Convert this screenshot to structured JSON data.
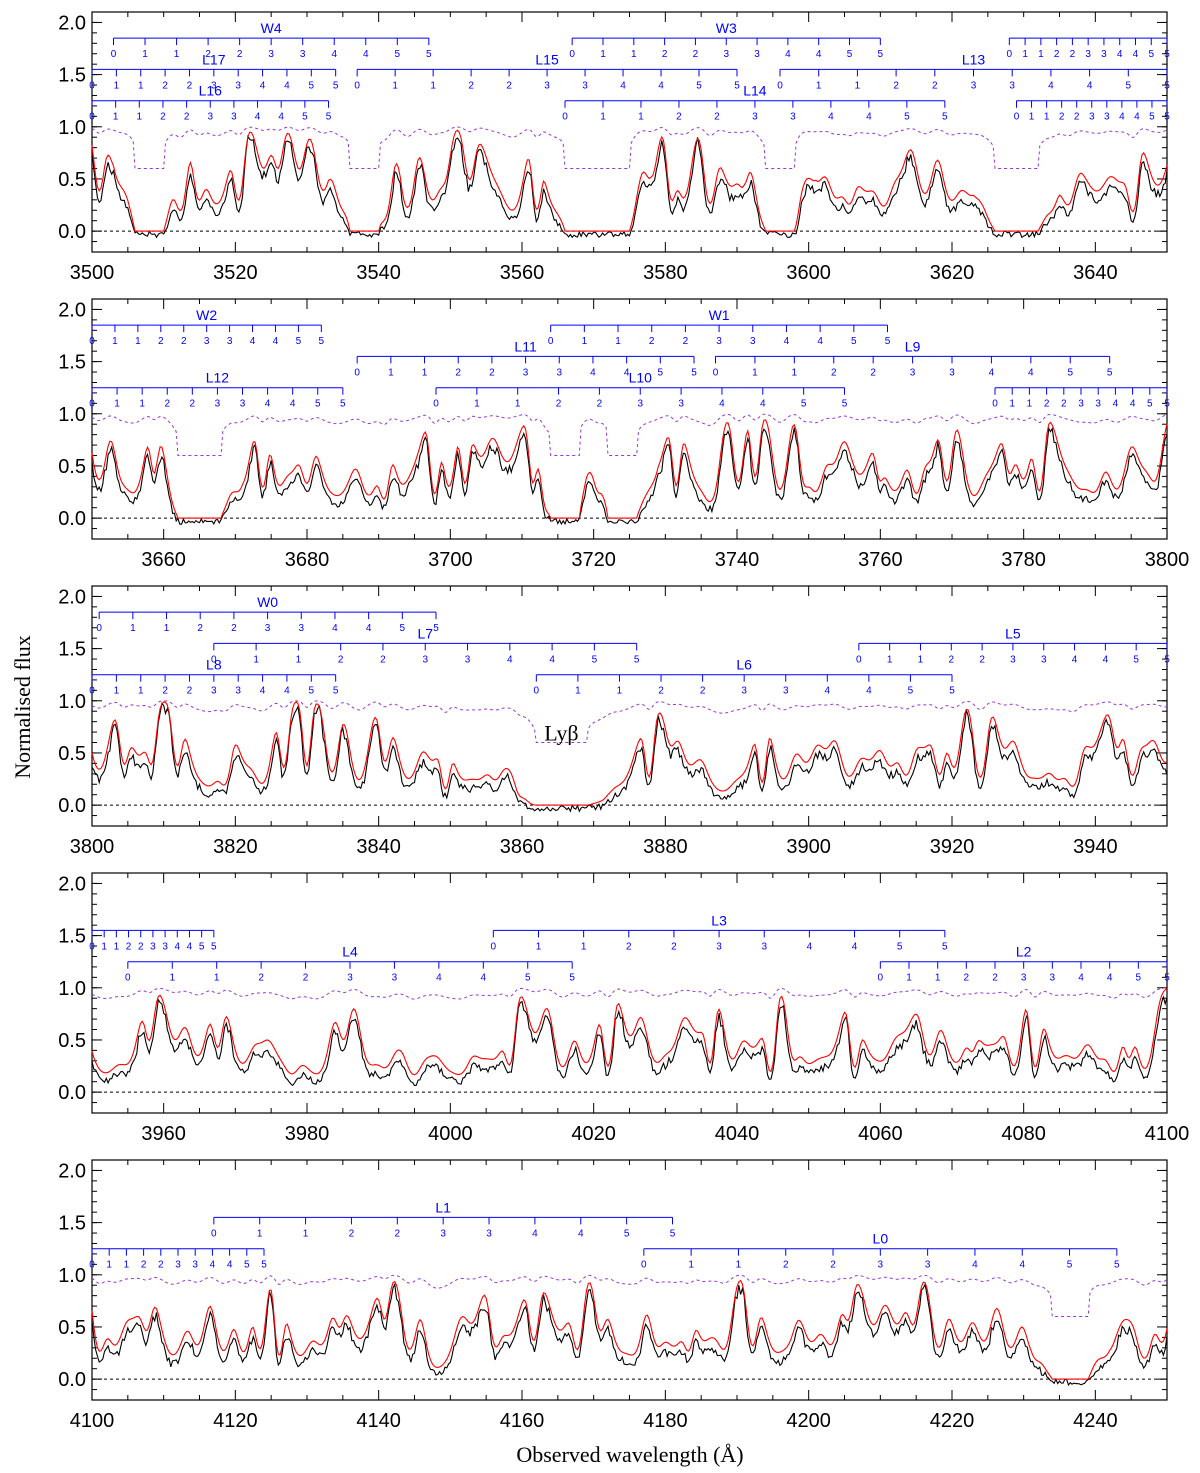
{
  "figure": {
    "ylabel": "Normalised flux",
    "xlabel": "Observed wavelength (Å)"
  },
  "chart_data": [
    {
      "type": "line",
      "xlim": [
        3500,
        3650
      ],
      "ylim": [
        -0.2,
        2.1
      ],
      "xticks": [
        3500,
        3520,
        3540,
        3560,
        3580,
        3600,
        3620,
        3640
      ],
      "yticks": [
        "0.0",
        "0.5",
        "1.0",
        "1.5",
        "2.0"
      ],
      "ladders": [
        {
          "name": "W4",
          "level": 1.85,
          "start": 3503,
          "end": 3547
        },
        {
          "name": "L17",
          "level": 1.55,
          "start": 3500,
          "end": 3534
        },
        {
          "name": "L16",
          "level": 1.25,
          "start": 3500,
          "end": 3533
        },
        {
          "name": "L15",
          "level": 1.55,
          "start": 3537,
          "end": 3590
        },
        {
          "name": "W3",
          "level": 1.85,
          "start": 3567,
          "end": 3610
        },
        {
          "name": "L14",
          "level": 1.25,
          "start": 3566,
          "end": 3619
        },
        {
          "name": "L13",
          "level": 1.55,
          "start": 3596,
          "end": 3650
        },
        {
          "name": "",
          "level": 1.85,
          "start": 3628,
          "end": 3650
        },
        {
          "name": "",
          "level": 1.25,
          "start": 3629,
          "end": 3650
        }
      ],
      "saturated": [
        [
          3506,
          3510
        ],
        [
          3536,
          3540
        ],
        [
          3566,
          3575
        ],
        [
          3594,
          3598
        ],
        [
          3626,
          3632
        ]
      ],
      "annotation": ""
    },
    {
      "type": "line",
      "xlim": [
        3650,
        3800
      ],
      "ylim": [
        -0.2,
        2.1
      ],
      "xticks": [
        3660,
        3680,
        3700,
        3720,
        3740,
        3760,
        3780,
        3800
      ],
      "yticks": [
        "0.0",
        "0.5",
        "1.0",
        "1.5",
        "2.0"
      ],
      "ladders": [
        {
          "name": "W2",
          "level": 1.85,
          "start": 3650,
          "end": 3682
        },
        {
          "name": "L12",
          "level": 1.25,
          "start": 3650,
          "end": 3685
        },
        {
          "name": "L11",
          "level": 1.55,
          "start": 3687,
          "end": 3734
        },
        {
          "name": "W1",
          "level": 1.85,
          "start": 3714,
          "end": 3761
        },
        {
          "name": "L10",
          "level": 1.25,
          "start": 3698,
          "end": 3755
        },
        {
          "name": "L9",
          "level": 1.55,
          "start": 3737,
          "end": 3792
        },
        {
          "name": "",
          "level": 1.25,
          "start": 3776,
          "end": 3800
        }
      ],
      "saturated": [
        [
          3662,
          3668
        ],
        [
          3714,
          3718
        ],
        [
          3722,
          3726
        ]
      ],
      "annotation": ""
    },
    {
      "type": "line",
      "xlim": [
        3800,
        3950
      ],
      "ylim": [
        -0.2,
        2.1
      ],
      "xticks": [
        3800,
        3820,
        3840,
        3860,
        3880,
        3900,
        3920,
        3940
      ],
      "yticks": [
        "0.0",
        "0.5",
        "1.0",
        "1.5",
        "2.0"
      ],
      "ladders": [
        {
          "name": "W0",
          "level": 1.85,
          "start": 3801,
          "end": 3848
        },
        {
          "name": "L8",
          "level": 1.25,
          "start": 3800,
          "end": 3834
        },
        {
          "name": "L7",
          "level": 1.55,
          "start": 3817,
          "end": 3876
        },
        {
          "name": "L6",
          "level": 1.25,
          "start": 3862,
          "end": 3920
        },
        {
          "name": "L5",
          "level": 1.55,
          "start": 3907,
          "end": 3950
        }
      ],
      "saturated": [
        [
          3862,
          3869
        ]
      ],
      "annotation": "Lyβ"
    },
    {
      "type": "line",
      "xlim": [
        3950,
        4100
      ],
      "ylim": [
        -0.2,
        2.1
      ],
      "xticks": [
        3960,
        3980,
        4000,
        4020,
        4040,
        4060,
        4080,
        4100
      ],
      "yticks": [
        "0.0",
        "0.5",
        "1.0",
        "1.5",
        "2.0"
      ],
      "ladders": [
        {
          "name": "",
          "level": 1.55,
          "start": 3950,
          "end": 3967
        },
        {
          "name": "L4",
          "level": 1.25,
          "start": 3955,
          "end": 4017
        },
        {
          "name": "L3",
          "level": 1.55,
          "start": 4006,
          "end": 4069
        },
        {
          "name": "L2",
          "level": 1.25,
          "start": 4060,
          "end": 4100
        }
      ],
      "saturated": [],
      "annotation": ""
    },
    {
      "type": "line",
      "xlim": [
        4100,
        4250
      ],
      "ylim": [
        -0.2,
        2.1
      ],
      "xticks": [
        4100,
        4120,
        4140,
        4160,
        4180,
        4200,
        4220,
        4240
      ],
      "yticks": [
        "0.0",
        "0.5",
        "1.0",
        "1.5",
        "2.0"
      ],
      "ladders": [
        {
          "name": "",
          "level": 1.25,
          "start": 4100,
          "end": 4124
        },
        {
          "name": "L1",
          "level": 1.55,
          "start": 4117,
          "end": 4181
        },
        {
          "name": "L0",
          "level": 1.25,
          "start": 4177,
          "end": 4243
        }
      ],
      "saturated": [
        [
          4234,
          4239
        ]
      ],
      "annotation": ""
    }
  ]
}
